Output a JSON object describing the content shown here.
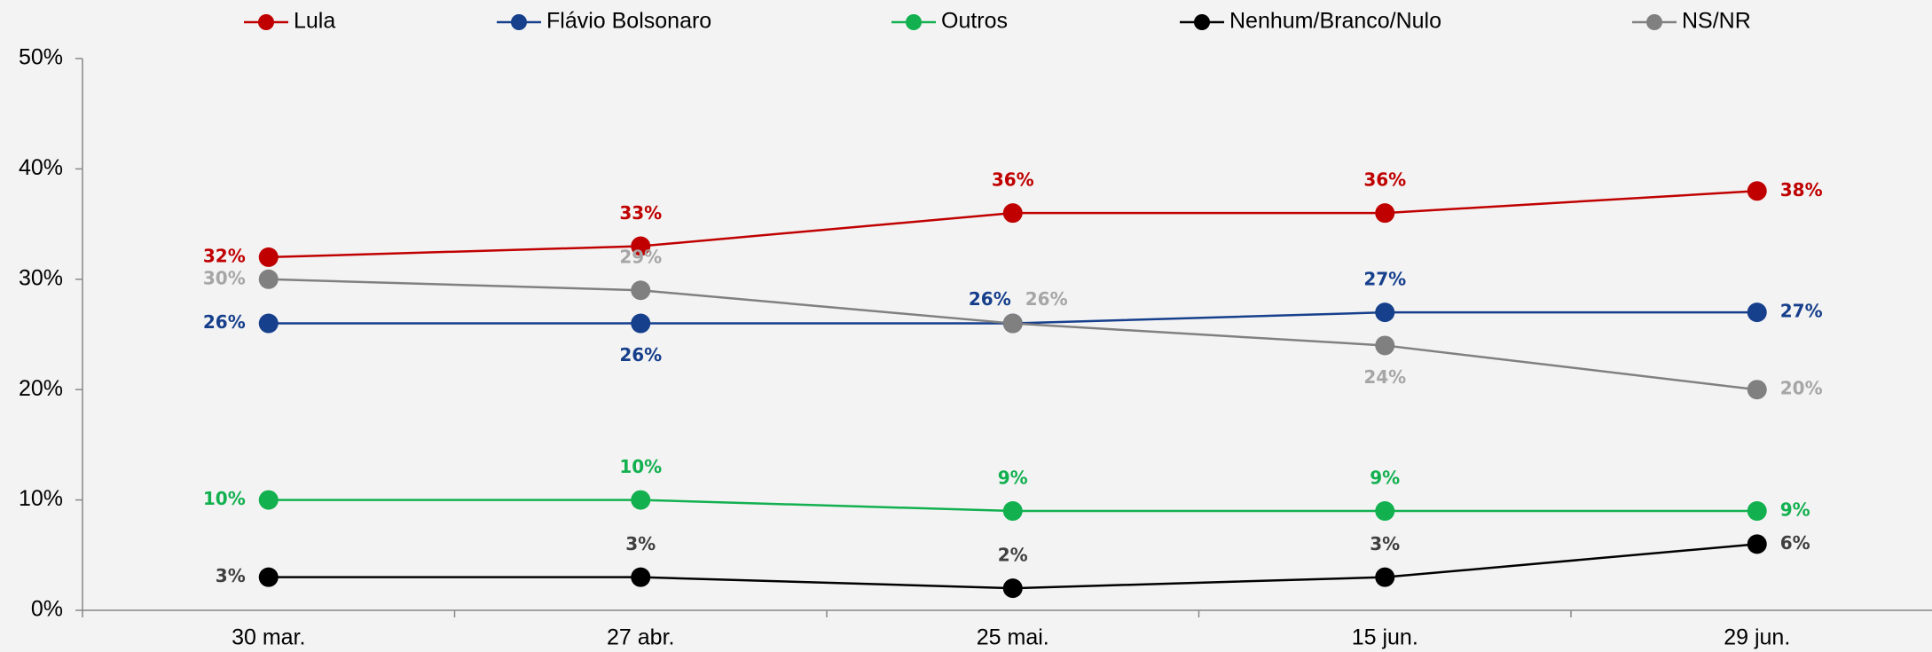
{
  "chart_data": {
    "type": "line",
    "categories": [
      "30 mar.",
      "27 abr.",
      "25 mai.",
      "15 jun.",
      "29 jun."
    ],
    "ylim": [
      0,
      50
    ],
    "yticks": [
      {
        "value": 0,
        "label": "0%"
      },
      {
        "value": 10,
        "label": "10%"
      },
      {
        "value": 20,
        "label": "20%"
      },
      {
        "value": 30,
        "label": "30%"
      },
      {
        "value": 40,
        "label": "40%"
      },
      {
        "value": 50,
        "label": "50%"
      }
    ],
    "grid": false,
    "legend": "top",
    "series": [
      {
        "name": "Lula",
        "color": "#c00000",
        "label_color": "#c00000",
        "values": [
          32,
          33,
          36,
          36,
          38
        ],
        "value_labels": [
          "32%",
          "33%",
          "36%",
          "36%",
          "38%"
        ]
      },
      {
        "name": "Flávio Bolsonaro",
        "color": "#163f8c",
        "label_color": "#163f8c",
        "values": [
          26,
          26,
          26,
          27,
          27
        ],
        "value_labels": [
          "26%",
          "26%",
          "26%",
          "27%",
          "27%"
        ]
      },
      {
        "name": "Outros",
        "color": "#12b04f",
        "label_color": "#12b04f",
        "values": [
          10,
          10,
          9,
          9,
          9
        ],
        "value_labels": [
          "10%",
          "10%",
          "9%",
          "9%",
          "9%"
        ]
      },
      {
        "name": "Nenhum/Branco/Nulo",
        "color": "#000000",
        "label_color": "#404040",
        "values": [
          3,
          3,
          2,
          3,
          6
        ],
        "value_labels": [
          "3%",
          "3%",
          "2%",
          "3%",
          "6%"
        ]
      },
      {
        "name": "NS/NR",
        "color": "#808080",
        "label_color": "#a6a6a6",
        "values": [
          30,
          29,
          26,
          24,
          20
        ],
        "value_labels": [
          "30%",
          "29%",
          "26%",
          "24%",
          "20%"
        ]
      }
    ]
  }
}
